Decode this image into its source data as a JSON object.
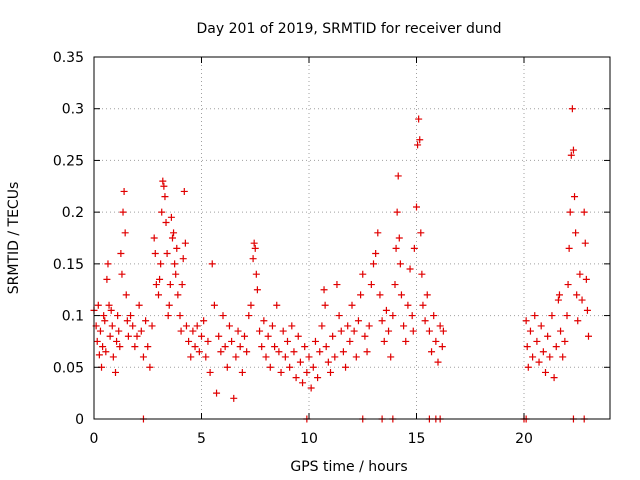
{
  "chart_data": {
    "type": "scatter",
    "title": "Day 201 of 2019, SRMTID for receiver dund",
    "xlabel": "GPS time / hours",
    "ylabel": "SRMTID / TECUs",
    "xlim": [
      0,
      24
    ],
    "ylim": [
      0,
      0.35
    ],
    "xticks": [
      {
        "value": 0,
        "label": "0"
      },
      {
        "value": 5,
        "label": "5"
      },
      {
        "value": 10,
        "label": "10"
      },
      {
        "value": 15,
        "label": "15"
      },
      {
        "value": 20,
        "label": "20"
      }
    ],
    "yticks": [
      {
        "value": 0,
        "label": "0"
      },
      {
        "value": 0.05,
        "label": "0.05"
      },
      {
        "value": 0.1,
        "label": "0.1"
      },
      {
        "value": 0.15,
        "label": "0.15"
      },
      {
        "value": 0.2,
        "label": "0.2"
      },
      {
        "value": 0.25,
        "label": "0.25"
      },
      {
        "value": 0.3,
        "label": "0.3"
      },
      {
        "value": 0.35,
        "label": "0.35"
      }
    ],
    "grid": true,
    "marker": "+",
    "marker_color": "#e00000",
    "series": [
      {
        "name": "SRMTID",
        "points": [
          [
            0.0,
            0.105
          ],
          [
            0.1,
            0.09
          ],
          [
            0.15,
            0.075
          ],
          [
            0.2,
            0.11
          ],
          [
            0.25,
            0.062
          ],
          [
            0.3,
            0.085
          ],
          [
            0.35,
            0.05
          ],
          [
            0.4,
            0.07
          ],
          [
            0.45,
            0.1
          ],
          [
            0.5,
            0.095
          ],
          [
            0.55,
            0.065
          ],
          [
            0.6,
            0.135
          ],
          [
            0.65,
            0.15
          ],
          [
            0.7,
            0.11
          ],
          [
            0.75,
            0.08
          ],
          [
            0.8,
            0.105
          ],
          [
            0.85,
            0.09
          ],
          [
            0.9,
            0.06
          ],
          [
            1.0,
            0.045
          ],
          [
            1.05,
            0.075
          ],
          [
            1.1,
            0.1
          ],
          [
            1.15,
            0.085
          ],
          [
            1.2,
            0.07
          ],
          [
            1.25,
            0.16
          ],
          [
            1.3,
            0.14
          ],
          [
            1.35,
            0.2
          ],
          [
            1.4,
            0.22
          ],
          [
            1.45,
            0.18
          ],
          [
            1.5,
            0.12
          ],
          [
            1.55,
            0.095
          ],
          [
            1.6,
            0.08
          ],
          [
            1.7,
            0.1
          ],
          [
            1.8,
            0.09
          ],
          [
            1.9,
            0.07
          ],
          [
            2.0,
            0.08
          ],
          [
            2.1,
            0.11
          ],
          [
            2.2,
            0.085
          ],
          [
            2.3,
            0.06
          ],
          [
            2.4,
            0.095
          ],
          [
            2.5,
            0.07
          ],
          [
            2.6,
            0.05
          ],
          [
            2.7,
            0.09
          ],
          [
            2.8,
            0.175
          ],
          [
            2.85,
            0.16
          ],
          [
            2.9,
            0.13
          ],
          [
            3.0,
            0.12
          ],
          [
            3.05,
            0.135
          ],
          [
            3.1,
            0.15
          ],
          [
            3.15,
            0.2
          ],
          [
            3.2,
            0.23
          ],
          [
            3.25,
            0.225
          ],
          [
            3.3,
            0.215
          ],
          [
            3.35,
            0.19
          ],
          [
            3.4,
            0.16
          ],
          [
            3.45,
            0.1
          ],
          [
            3.5,
            0.11
          ],
          [
            3.55,
            0.13
          ],
          [
            3.6,
            0.195
          ],
          [
            3.65,
            0.175
          ],
          [
            3.7,
            0.18
          ],
          [
            3.75,
            0.15
          ],
          [
            3.8,
            0.14
          ],
          [
            3.85,
            0.165
          ],
          [
            3.9,
            0.12
          ],
          [
            4.0,
            0.1
          ],
          [
            4.05,
            0.085
          ],
          [
            4.1,
            0.13
          ],
          [
            4.15,
            0.155
          ],
          [
            4.2,
            0.22
          ],
          [
            4.25,
            0.17
          ],
          [
            4.3,
            0.09
          ],
          [
            4.4,
            0.075
          ],
          [
            4.5,
            0.06
          ],
          [
            4.6,
            0.085
          ],
          [
            4.7,
            0.07
          ],
          [
            4.8,
            0.09
          ],
          [
            4.9,
            0.065
          ],
          [
            5.0,
            0.08
          ],
          [
            5.1,
            0.095
          ],
          [
            5.2,
            0.06
          ],
          [
            5.3,
            0.075
          ],
          [
            5.4,
            0.045
          ],
          [
            5.5,
            0.15
          ],
          [
            5.6,
            0.11
          ],
          [
            5.7,
            0.025
          ],
          [
            5.8,
            0.08
          ],
          [
            5.9,
            0.065
          ],
          [
            6.0,
            0.1
          ],
          [
            6.1,
            0.07
          ],
          [
            6.2,
            0.05
          ],
          [
            6.3,
            0.09
          ],
          [
            6.4,
            0.075
          ],
          [
            6.5,
            0.02
          ],
          [
            6.6,
            0.06
          ],
          [
            6.7,
            0.085
          ],
          [
            6.8,
            0.07
          ],
          [
            6.9,
            0.045
          ],
          [
            7.0,
            0.08
          ],
          [
            7.1,
            0.065
          ],
          [
            7.2,
            0.1
          ],
          [
            7.3,
            0.11
          ],
          [
            7.4,
            0.155
          ],
          [
            7.45,
            0.17
          ],
          [
            7.5,
            0.165
          ],
          [
            7.55,
            0.14
          ],
          [
            7.6,
            0.125
          ],
          [
            7.7,
            0.085
          ],
          [
            7.8,
            0.07
          ],
          [
            7.9,
            0.095
          ],
          [
            8.0,
            0.06
          ],
          [
            8.1,
            0.08
          ],
          [
            8.2,
            0.05
          ],
          [
            8.3,
            0.09
          ],
          [
            8.4,
            0.07
          ],
          [
            8.5,
            0.11
          ],
          [
            8.6,
            0.065
          ],
          [
            8.7,
            0.045
          ],
          [
            8.8,
            0.085
          ],
          [
            8.9,
            0.06
          ],
          [
            9.0,
            0.075
          ],
          [
            9.1,
            0.05
          ],
          [
            9.2,
            0.09
          ],
          [
            9.3,
            0.065
          ],
          [
            9.4,
            0.04
          ],
          [
            9.5,
            0.08
          ],
          [
            9.6,
            0.055
          ],
          [
            9.7,
            0.035
          ],
          [
            9.8,
            0.07
          ],
          [
            9.9,
            0.045
          ],
          [
            10.0,
            0.06
          ],
          [
            10.1,
            0.03
          ],
          [
            10.2,
            0.05
          ],
          [
            10.3,
            0.075
          ],
          [
            10.4,
            0.04
          ],
          [
            10.5,
            0.065
          ],
          [
            10.6,
            0.09
          ],
          [
            10.7,
            0.125
          ],
          [
            10.75,
            0.11
          ],
          [
            10.8,
            0.07
          ],
          [
            10.9,
            0.055
          ],
          [
            11.0,
            0.045
          ],
          [
            11.1,
            0.08
          ],
          [
            11.2,
            0.06
          ],
          [
            11.3,
            0.13
          ],
          [
            11.4,
            0.1
          ],
          [
            11.5,
            0.085
          ],
          [
            11.6,
            0.065
          ],
          [
            11.7,
            0.05
          ],
          [
            11.8,
            0.09
          ],
          [
            11.9,
            0.075
          ],
          [
            12.0,
            0.11
          ],
          [
            12.1,
            0.085
          ],
          [
            12.2,
            0.06
          ],
          [
            12.3,
            0.095
          ],
          [
            12.4,
            0.12
          ],
          [
            12.5,
            0.14
          ],
          [
            12.6,
            0.08
          ],
          [
            12.7,
            0.065
          ],
          [
            12.8,
            0.09
          ],
          [
            12.9,
            0.13
          ],
          [
            13.0,
            0.15
          ],
          [
            13.1,
            0.16
          ],
          [
            13.2,
            0.18
          ],
          [
            13.3,
            0.12
          ],
          [
            13.4,
            0.095
          ],
          [
            13.5,
            0.075
          ],
          [
            13.6,
            0.105
          ],
          [
            13.7,
            0.085
          ],
          [
            13.8,
            0.06
          ],
          [
            13.9,
            0.1
          ],
          [
            14.0,
            0.13
          ],
          [
            14.05,
            0.165
          ],
          [
            14.1,
            0.2
          ],
          [
            14.15,
            0.235
          ],
          [
            14.2,
            0.175
          ],
          [
            14.25,
            0.15
          ],
          [
            14.3,
            0.12
          ],
          [
            14.4,
            0.09
          ],
          [
            14.5,
            0.075
          ],
          [
            14.6,
            0.11
          ],
          [
            14.7,
            0.145
          ],
          [
            14.8,
            0.1
          ],
          [
            14.85,
            0.085
          ],
          [
            14.9,
            0.165
          ],
          [
            15.0,
            0.205
          ],
          [
            15.05,
            0.265
          ],
          [
            15.1,
            0.29
          ],
          [
            15.15,
            0.27
          ],
          [
            15.2,
            0.18
          ],
          [
            15.25,
            0.14
          ],
          [
            15.3,
            0.11
          ],
          [
            15.4,
            0.095
          ],
          [
            15.5,
            0.12
          ],
          [
            15.6,
            0.085
          ],
          [
            15.7,
            0.065
          ],
          [
            15.8,
            0.1
          ],
          [
            15.9,
            0.075
          ],
          [
            16.0,
            0.055
          ],
          [
            16.1,
            0.09
          ],
          [
            16.2,
            0.07
          ],
          [
            16.25,
            0.085
          ],
          [
            20.1,
            0.095
          ],
          [
            20.15,
            0.07
          ],
          [
            20.2,
            0.05
          ],
          [
            20.3,
            0.085
          ],
          [
            20.4,
            0.06
          ],
          [
            20.5,
            0.1
          ],
          [
            20.6,
            0.075
          ],
          [
            20.7,
            0.055
          ],
          [
            20.8,
            0.09
          ],
          [
            20.9,
            0.065
          ],
          [
            21.0,
            0.045
          ],
          [
            21.1,
            0.08
          ],
          [
            21.2,
            0.06
          ],
          [
            21.3,
            0.1
          ],
          [
            21.4,
            0.04
          ],
          [
            21.5,
            0.07
          ],
          [
            21.6,
            0.115
          ],
          [
            21.65,
            0.12
          ],
          [
            21.7,
            0.085
          ],
          [
            21.8,
            0.06
          ],
          [
            21.9,
            0.075
          ],
          [
            22.0,
            0.1
          ],
          [
            22.05,
            0.13
          ],
          [
            22.1,
            0.165
          ],
          [
            22.15,
            0.2
          ],
          [
            22.2,
            0.255
          ],
          [
            22.25,
            0.3
          ],
          [
            22.3,
            0.26
          ],
          [
            22.35,
            0.215
          ],
          [
            22.4,
            0.18
          ],
          [
            22.45,
            0.12
          ],
          [
            22.5,
            0.095
          ],
          [
            22.6,
            0.14
          ],
          [
            22.7,
            0.115
          ],
          [
            22.8,
            0.2
          ],
          [
            22.85,
            0.17
          ],
          [
            22.9,
            0.135
          ],
          [
            22.95,
            0.105
          ],
          [
            23.0,
            0.08
          ]
        ]
      }
    ],
    "baseline_points": [
      2.3,
      9.9,
      12.5,
      13.4,
      13.9,
      15.6,
      15.9,
      16.1,
      20.0,
      20.1,
      22.3,
      22.8
    ]
  }
}
